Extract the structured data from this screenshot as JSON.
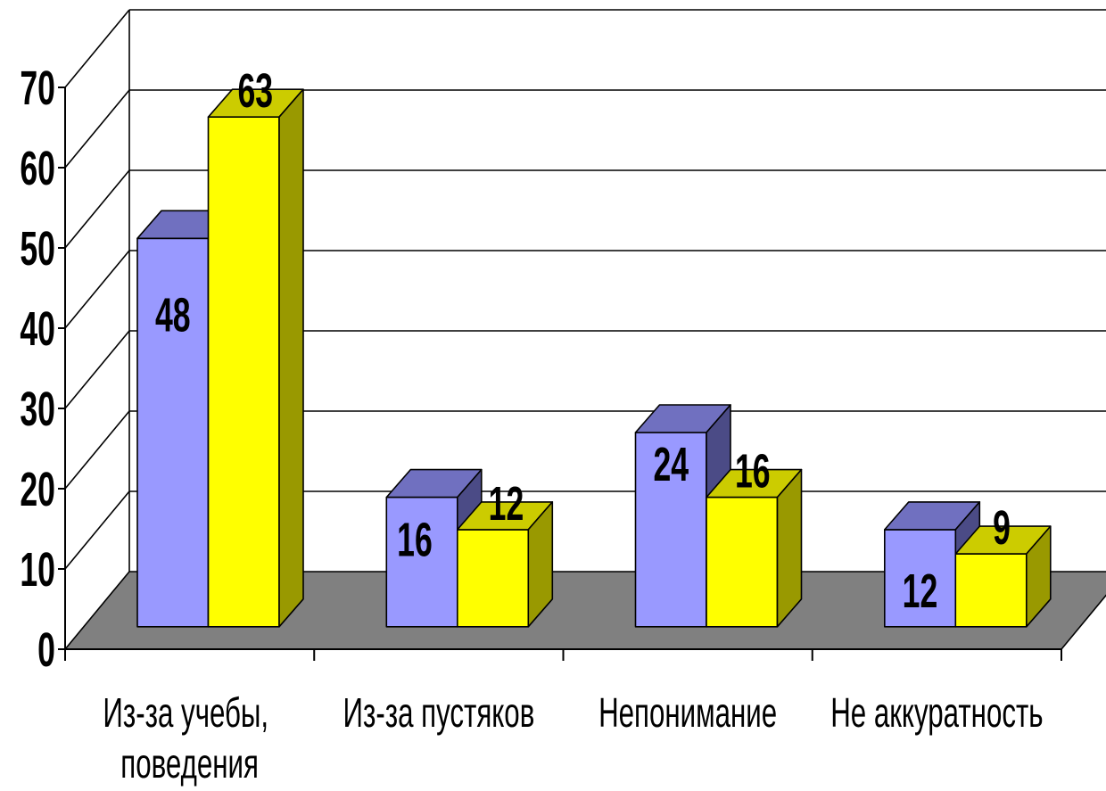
{
  "chart_data": {
    "type": "bar",
    "variant": "3d-clustered-column",
    "categories": [
      "Из-за учебы, поведения",
      "Из-за пустяков",
      "Непонимание",
      "Не аккуратность"
    ],
    "series": [
      {
        "values": [
          48,
          16,
          24,
          12
        ],
        "color": "#9999ff",
        "top_color": "#7070c0",
        "side_color": "#4b4b86"
      },
      {
        "values": [
          63,
          12,
          16,
          9
        ],
        "color": "#ffff00",
        "top_color": "#cccc00",
        "side_color": "#999900"
      }
    ],
    "data_labels": true,
    "ylim": [
      0,
      70
    ],
    "yticks": [
      0,
      10,
      20,
      30,
      40,
      50,
      60,
      70
    ],
    "grid": true,
    "legend": "none",
    "floor_color": "#808080",
    "wall_color": "#ffffff"
  }
}
